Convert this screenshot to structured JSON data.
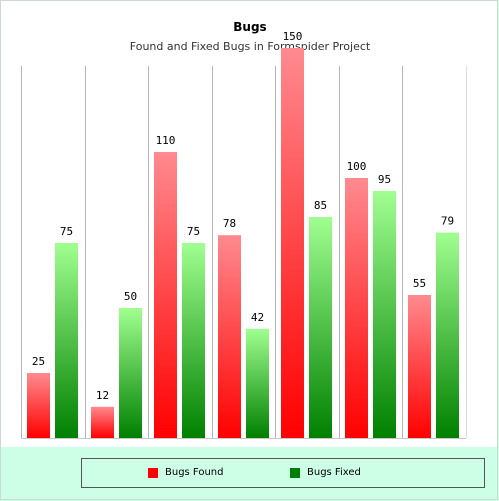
{
  "chart_data": {
    "type": "bar",
    "title": "Bugs",
    "subtitle": "Found and Fixed Bugs in Formspider Project",
    "categories": [
      "",
      "",
      "",
      "",
      "",
      "",
      ""
    ],
    "series": [
      {
        "name": "Bugs Found",
        "values": [
          25,
          12,
          110,
          78,
          150,
          100,
          55
        ],
        "color": "#ff0000",
        "color_light": "#ff8a8f"
      },
      {
        "name": "Bugs Fixed",
        "values": [
          75,
          50,
          75,
          42,
          85,
          95,
          79
        ],
        "color": "#008000",
        "color_light": "#a0ff90"
      }
    ],
    "ylim": [
      0,
      160
    ],
    "xlabel": "",
    "ylabel": "",
    "grid": "vertical",
    "legend_position": "bottom",
    "background": "#ccffe6"
  }
}
